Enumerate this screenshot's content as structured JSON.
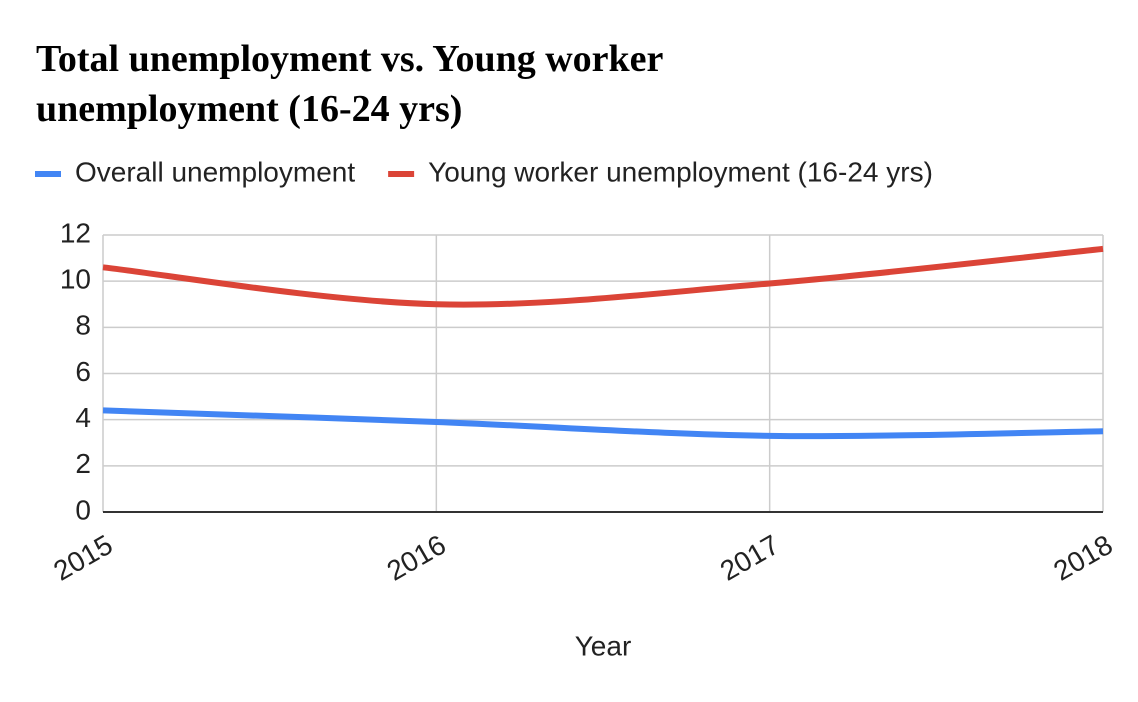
{
  "chart_data": {
    "type": "line",
    "title": "Total unemployment vs. Young worker unemployment (16-24 yrs)",
    "x_label": "Year",
    "x": [
      2015,
      2016,
      2017,
      2018
    ],
    "xlim": [
      2015,
      2018
    ],
    "xticks": [
      2015,
      2016,
      2017,
      2018
    ],
    "ylim": [
      0,
      12
    ],
    "yticks": [
      0,
      2,
      4,
      6,
      8,
      10,
      12
    ],
    "grid": true,
    "smooth": true,
    "legend": "top",
    "series": [
      {
        "name": "Overall unemployment",
        "color": "#4285f4",
        "values": [
          4.4,
          3.9,
          3.3,
          3.5
        ]
      },
      {
        "name": "Young worker unemployment (16-24 yrs)",
        "color": "#db4437",
        "values": [
          10.6,
          9.0,
          9.9,
          11.4
        ]
      }
    ]
  }
}
